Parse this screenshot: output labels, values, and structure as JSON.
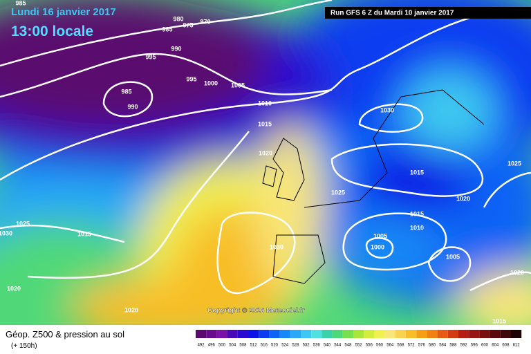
{
  "header": {
    "date": "Lundi 16 janvier 2017",
    "time": "13:00 locale",
    "run": "Run GFS 6 Z du Mardi 10 janvier 2017"
  },
  "copyright": "Copyright © 2016 Meteociel.fr",
  "footer": {
    "title": "Géop. Z500 & pression au sol",
    "lead": "(+ 150h)"
  },
  "isobar_labels": [
    985,
    970,
    975,
    980,
    985,
    990,
    995,
    995,
    1000,
    1005,
    985,
    990,
    1010,
    1015,
    1020,
    1030,
    1015,
    1025,
    1020,
    1025,
    1015,
    1010,
    1005,
    1000,
    1005,
    1030,
    1025,
    1030,
    1015,
    1020,
    1020,
    1020,
    1015
  ],
  "scale": {
    "labels": [
      492,
      496,
      500,
      504,
      508,
      512,
      516,
      520,
      524,
      528,
      532,
      536,
      540,
      544,
      548,
      552,
      556,
      560,
      564,
      568,
      572,
      576,
      580,
      584,
      588,
      592,
      596,
      600,
      604,
      608,
      612
    ],
    "colors": [
      "#5a0a6e",
      "#6a0a8c",
      "#7a12a8",
      "#4a0ab8",
      "#2a0ad0",
      "#0a14e6",
      "#0a3cf0",
      "#0a64f5",
      "#1488f5",
      "#28a8f5",
      "#3cc8f0",
      "#50e0e0",
      "#3cd2a8",
      "#50d878",
      "#78e050",
      "#a8e63c",
      "#d2ee3c",
      "#f0f050",
      "#f8e678",
      "#f8d250",
      "#f8be28",
      "#f5a014",
      "#f08214",
      "#e65a14",
      "#d23c14",
      "#b41e14",
      "#961414",
      "#781010",
      "#5a0a0a",
      "#3c0a0a",
      "#1e0505"
    ]
  }
}
